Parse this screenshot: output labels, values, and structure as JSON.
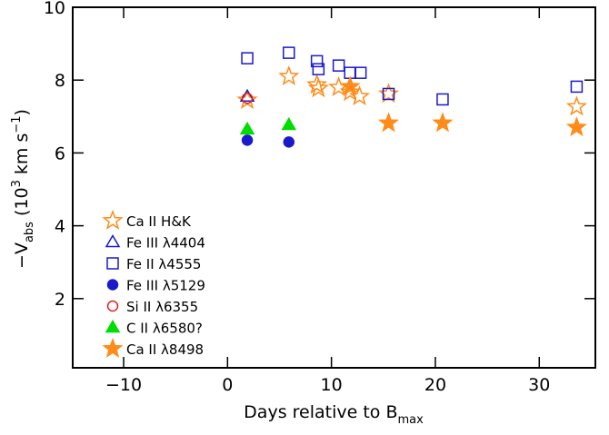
{
  "chart_data": {
    "type": "scatter",
    "xlabel": {
      "main": "Days relative to B",
      "sub": "max"
    },
    "ylabel": {
      "main": "−V",
      "sub": "abs",
      "mid": " (10",
      "sup": "3",
      "rest": " km s",
      "sup2": "−1",
      "end": ")"
    },
    "xlim": [
      -14.9,
      35.4
    ],
    "xticks": [
      {
        "value": -10,
        "label": "−10"
      },
      0,
      10,
      20,
      30
    ],
    "ylim": [
      0.1,
      10
    ],
    "yticks": [
      2,
      4,
      6,
      8,
      10
    ],
    "legend": "lower left",
    "series": [
      {
        "name": "Ca II H&K",
        "color": "#ff8c1a",
        "marker": "star",
        "filled": false,
        "x": [
          1.9,
          5.9,
          8.6,
          8.75,
          10.7,
          11.8,
          12.7,
          15.5,
          33.6
        ],
        "values": [
          7.45,
          8.1,
          7.87,
          7.77,
          7.8,
          7.67,
          7.55,
          7.62,
          7.27
        ]
      },
      {
        "name": "Fe III λ4404",
        "color": "#1a1acc",
        "marker": "triangle",
        "filled": false,
        "x": [
          1.9
        ],
        "values": [
          7.55
        ]
      },
      {
        "name": "Fe II λ4555",
        "color": "#1a1acc",
        "marker": "square",
        "filled": false,
        "x": [
          1.9,
          5.9,
          8.6,
          8.75,
          10.7,
          11.8,
          12.8,
          15.5,
          20.7,
          33.6
        ],
        "values": [
          8.6,
          8.75,
          8.52,
          8.3,
          8.4,
          8.2,
          8.2,
          7.62,
          7.47,
          7.82
        ]
      },
      {
        "name": "Fe III λ5129",
        "color": "#1a1acc",
        "marker": "circle",
        "filled": true,
        "x": [
          1.9,
          5.9
        ],
        "values": [
          6.35,
          6.3
        ]
      },
      {
        "name": "Si II λ6355",
        "color": "#e02020",
        "marker": "circle",
        "filled": false,
        "x": [
          1.9
        ],
        "values": [
          7.5
        ]
      },
      {
        "name": "C II λ6580?",
        "color": "#00dd00",
        "marker": "triangle",
        "filled": true,
        "x": [
          1.9,
          5.9
        ],
        "values": [
          6.65,
          6.77
        ]
      },
      {
        "name": "Ca II λ8498",
        "color": "#ff8c1a",
        "marker": "star",
        "filled": true,
        "x": [
          11.8,
          15.5,
          20.7,
          33.6
        ],
        "values": [
          7.82,
          6.82,
          6.82,
          6.7
        ]
      }
    ]
  }
}
